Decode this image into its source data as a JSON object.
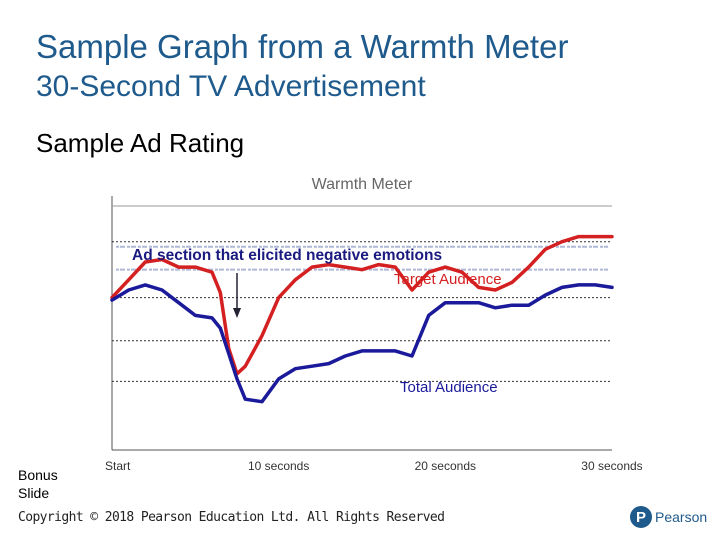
{
  "slide": {
    "title_line1": "Sample Graph from a Warmth Meter",
    "title_line2": "30-Second TV Advertisement",
    "subtitle": "Sample Ad Rating",
    "bonus_label": "Bonus Slide",
    "copyright": "Copyright © 2018 Pearson Education Ltd. All Rights Reserved",
    "logo_mark": "P",
    "logo_text": "Pearson"
  },
  "colors": {
    "title": "#1f5a8c",
    "target": "#d42020",
    "total": "#1a1a9a",
    "gridline": "#333333",
    "faded_text": "#b0b8d8"
  },
  "chart_data": {
    "type": "line",
    "title": "Warmth Meter",
    "x": [
      0,
      1,
      2,
      3,
      4,
      5,
      6,
      6.5,
      7,
      7.5,
      8,
      9,
      10,
      11,
      12,
      13,
      14,
      15,
      16,
      17,
      18,
      19,
      20,
      21,
      22,
      23,
      24,
      25,
      26,
      27,
      28,
      29,
      30
    ],
    "xlim": [
      0,
      30
    ],
    "x_ticks": [
      {
        "value": 0,
        "label": "Start"
      },
      {
        "value": 10,
        "label": "10 seconds"
      },
      {
        "value": 20,
        "label": "20 seconds"
      },
      {
        "value": 30,
        "label": "30 seconds"
      }
    ],
    "ylim": [
      0,
      100
    ],
    "gridlines": [
      82,
      60,
      43,
      27
    ],
    "series": [
      {
        "name": "Target Audience",
        "values": [
          60,
          67,
          74,
          75,
          72,
          72,
          70,
          62,
          40,
          30,
          33,
          45,
          60,
          67,
          72,
          73,
          72,
          71,
          73,
          72,
          63,
          70,
          72,
          70,
          64,
          63,
          66,
          72,
          79,
          82,
          84,
          84,
          84
        ]
      },
      {
        "name": "Total Audience",
        "values": [
          59,
          63,
          65,
          63,
          58,
          53,
          52,
          48,
          38,
          28,
          20,
          19,
          28,
          32,
          33,
          34,
          37,
          39,
          39,
          39,
          37,
          53,
          58,
          58,
          58,
          56,
          57,
          57,
          61,
          64,
          65,
          65,
          64
        ]
      }
    ],
    "annotations": [
      {
        "text": "Ad section that elicited negative emotions",
        "x": 7.5
      },
      {
        "text": "Target Audience",
        "series": "Target Audience"
      },
      {
        "text": "Total Audience",
        "series": "Total Audience"
      }
    ]
  }
}
